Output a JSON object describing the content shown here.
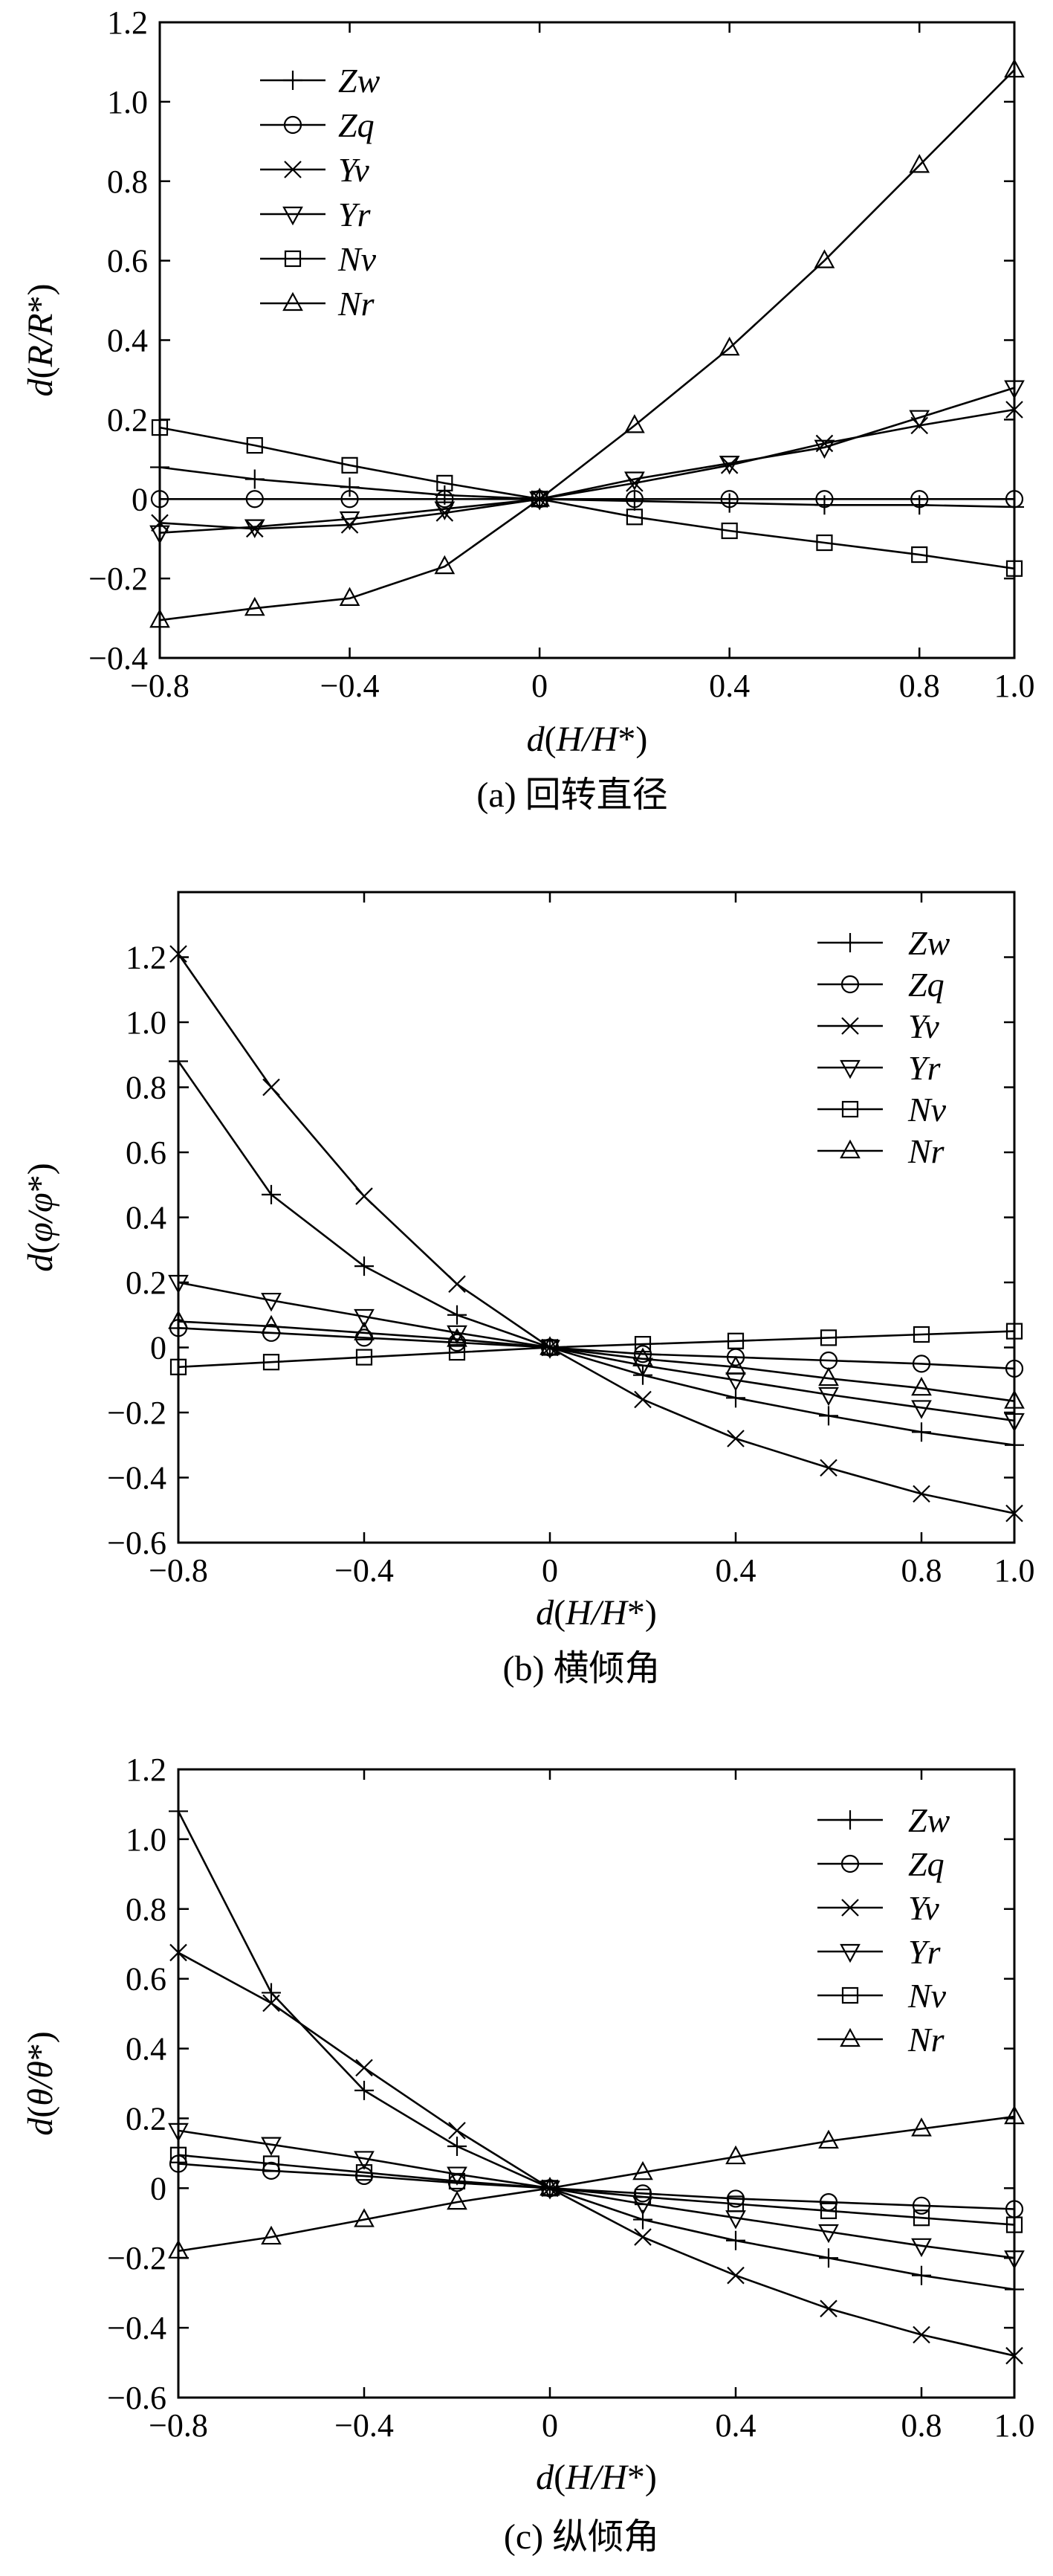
{
  "figure": {
    "legend_labels": [
      "Zw",
      "Zq",
      "Yv",
      "Yr",
      "Nv",
      "Nr"
    ]
  },
  "chart_data": [
    {
      "type": "line",
      "panel": "a",
      "caption": "(a) 回转直径",
      "ylabel": "d(R/R*)",
      "ylabel_parts": {
        "d": "d",
        "open": "(",
        "var": "R/R",
        "star": "*",
        "close": ")"
      },
      "xlabel": "d(H/H*)",
      "xlabel_parts": {
        "d": "d",
        "open": "(",
        "var": "H/H",
        "star": "*",
        "close": ")"
      },
      "xlim": [
        -0.8,
        1.0
      ],
      "ylim": [
        -0.4,
        1.2
      ],
      "xticks": [
        -0.8,
        -0.4,
        0,
        0.4,
        0.8,
        1.0
      ],
      "xtick_labels": [
        "−0.8",
        "−0.4",
        "0",
        "0.4",
        "0.8",
        "1.0"
      ],
      "yticks": [
        -0.4,
        -0.2,
        0,
        0.2,
        0.4,
        0.6,
        0.8,
        1.0,
        1.2
      ],
      "ytick_labels": [
        "−0.4",
        "−0.2",
        "0",
        "0.2",
        "0.4",
        "0.6",
        "0.8",
        "1.0",
        "1.2"
      ],
      "legend_position": "top-left",
      "x": [
        -0.8,
        -0.6,
        -0.4,
        -0.2,
        0,
        0.2,
        0.4,
        0.6,
        0.8,
        1.0
      ],
      "series": [
        {
          "name": "Zw",
          "marker": "plus",
          "values": [
            0.08,
            0.05,
            0.03,
            0.01,
            0,
            -0.005,
            -0.01,
            -0.015,
            -0.015,
            -0.02
          ]
        },
        {
          "name": "Zq",
          "marker": "circle",
          "values": [
            0.0,
            0.0,
            0.0,
            0.0,
            0,
            0.0,
            0.0,
            0.0,
            0.0,
            0.0
          ]
        },
        {
          "name": "Yv",
          "marker": "x",
          "values": [
            -0.06,
            -0.075,
            -0.065,
            -0.035,
            0,
            0.04,
            0.085,
            0.14,
            0.185,
            0.225
          ]
        },
        {
          "name": "Yr",
          "marker": "triangle-down",
          "values": [
            -0.085,
            -0.07,
            -0.05,
            -0.025,
            0,
            0.05,
            0.09,
            0.13,
            0.205,
            0.28
          ]
        },
        {
          "name": "Nv",
          "marker": "square",
          "values": [
            0.18,
            0.135,
            0.085,
            0.04,
            0,
            -0.045,
            -0.08,
            -0.11,
            -0.14,
            -0.175
          ]
        },
        {
          "name": "Nr",
          "marker": "triangle-up",
          "values": [
            -0.305,
            -0.275,
            -0.25,
            -0.17,
            0,
            0.185,
            0.38,
            0.6,
            0.84,
            1.08
          ]
        }
      ]
    },
    {
      "type": "line",
      "panel": "b",
      "caption": "(b) 横倾角",
      "ylabel": "d(φ/φ*)",
      "ylabel_parts": {
        "d": "d",
        "open": "(",
        "var": "φ/φ",
        "star": "*",
        "close": ")"
      },
      "xlabel": "d(H/H*)",
      "xlabel_parts": {
        "d": "d",
        "open": "(",
        "var": "H/H",
        "star": "*",
        "close": ")"
      },
      "xlim": [
        -0.8,
        1.0
      ],
      "ylim": [
        -0.6,
        1.4
      ],
      "xticks": [
        -0.8,
        -0.4,
        0,
        0.4,
        0.8,
        1.0
      ],
      "xtick_labels": [
        "−0.8",
        "−0.4",
        "0",
        "0.4",
        "0.8",
        "1.0"
      ],
      "yticks": [
        -0.6,
        -0.4,
        -0.2,
        0,
        0.2,
        0.4,
        0.6,
        0.8,
        1.0,
        1.2
      ],
      "ytick_labels": [
        "−0.6",
        "−0.4",
        "−0.2",
        "0",
        "0.2",
        "0.4",
        "0.6",
        "0.8",
        "1.0",
        "1.2"
      ],
      "legend_position": "top-right",
      "x": [
        -0.8,
        -0.6,
        -0.4,
        -0.2,
        0,
        0.2,
        0.4,
        0.6,
        0.8,
        1.0
      ],
      "series": [
        {
          "name": "Zw",
          "marker": "plus",
          "values": [
            0.88,
            0.47,
            0.25,
            0.1,
            0,
            -0.085,
            -0.155,
            -0.21,
            -0.26,
            -0.3
          ]
        },
        {
          "name": "Zq",
          "marker": "circle",
          "values": [
            0.06,
            0.045,
            0.03,
            0.015,
            0,
            -0.02,
            -0.03,
            -0.04,
            -0.05,
            -0.065
          ]
        },
        {
          "name": "Yv",
          "marker": "x",
          "values": [
            1.21,
            0.8,
            0.465,
            0.195,
            0,
            -0.16,
            -0.28,
            -0.37,
            -0.45,
            -0.51
          ]
        },
        {
          "name": "Yr",
          "marker": "triangle-down",
          "values": [
            0.2,
            0.145,
            0.095,
            0.045,
            0,
            -0.055,
            -0.1,
            -0.145,
            -0.185,
            -0.225
          ]
        },
        {
          "name": "Nv",
          "marker": "square",
          "values": [
            -0.06,
            -0.045,
            -0.03,
            -0.015,
            0,
            0.01,
            0.02,
            0.03,
            0.04,
            0.05
          ]
        },
        {
          "name": "Nr",
          "marker": "triangle-up",
          "values": [
            0.08,
            0.065,
            0.045,
            0.025,
            0,
            -0.035,
            -0.06,
            -0.095,
            -0.125,
            -0.165
          ]
        }
      ]
    },
    {
      "type": "line",
      "panel": "c",
      "caption": "(c) 纵倾角",
      "ylabel": "d(θ/θ*)",
      "ylabel_parts": {
        "d": "d",
        "open": "(",
        "var": "θ/θ",
        "star": "*",
        "close": ")"
      },
      "xlabel": "d(H/H*)",
      "xlabel_parts": {
        "d": "d",
        "open": "(",
        "var": "H/H",
        "star": "*",
        "close": ")"
      },
      "xlim": [
        -0.8,
        1.0
      ],
      "ylim": [
        -0.6,
        1.2
      ],
      "xticks": [
        -0.8,
        -0.4,
        0,
        0.4,
        0.8,
        1.0
      ],
      "xtick_labels": [
        "−0.8",
        "−0.4",
        "0",
        "0.4",
        "0.8",
        "1.0"
      ],
      "yticks": [
        -0.6,
        -0.4,
        -0.2,
        0,
        0.2,
        0.4,
        0.6,
        0.8,
        1.0,
        1.2
      ],
      "ytick_labels": [
        "−0.6",
        "−0.4",
        "−0.2",
        "0",
        "0.2",
        "0.4",
        "0.6",
        "0.8",
        "1.0",
        "1.2"
      ],
      "legend_position": "top-right",
      "x": [
        -0.8,
        -0.6,
        -0.4,
        -0.2,
        0,
        0.2,
        0.4,
        0.6,
        0.8,
        1.0
      ],
      "series": [
        {
          "name": "Zw",
          "marker": "plus",
          "values": [
            1.08,
            0.56,
            0.28,
            0.12,
            0,
            -0.09,
            -0.15,
            -0.2,
            -0.25,
            -0.29
          ]
        },
        {
          "name": "Zq",
          "marker": "circle",
          "values": [
            0.07,
            0.05,
            0.035,
            0.015,
            0,
            -0.015,
            -0.03,
            -0.04,
            -0.05,
            -0.06
          ]
        },
        {
          "name": "Yv",
          "marker": "x",
          "values": [
            0.675,
            0.53,
            0.345,
            0.165,
            0,
            -0.14,
            -0.25,
            -0.345,
            -0.42,
            -0.48
          ]
        },
        {
          "name": "Yr",
          "marker": "triangle-down",
          "values": [
            0.165,
            0.125,
            0.085,
            0.04,
            0,
            -0.045,
            -0.085,
            -0.125,
            -0.165,
            -0.2
          ]
        },
        {
          "name": "Nv",
          "marker": "square",
          "values": [
            0.095,
            0.07,
            0.045,
            0.02,
            0,
            -0.025,
            -0.045,
            -0.065,
            -0.085,
            -0.105
          ]
        },
        {
          "name": "Nr",
          "marker": "triangle-up",
          "values": [
            -0.18,
            -0.14,
            -0.09,
            -0.04,
            0,
            0.045,
            0.09,
            0.135,
            0.17,
            0.205
          ]
        }
      ]
    }
  ]
}
